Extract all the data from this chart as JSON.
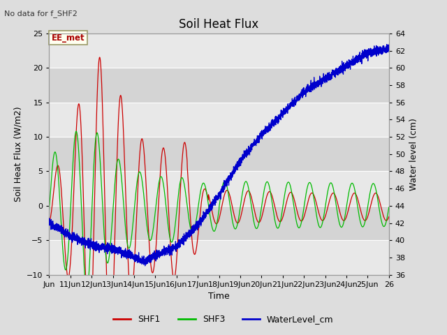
{
  "title": "Soil Heat Flux",
  "subtitle": "No data for f_SHF2",
  "ylabel_left": "Soil Heat Flux (W/m2)",
  "ylabel_right": "Water level (cm)",
  "xlabel": "Time",
  "ylim_left": [
    -10,
    25
  ],
  "ylim_right": [
    36,
    64
  ],
  "x_tick_labels": [
    "Jun",
    "11Jun",
    "12Jun",
    "13Jun",
    "14Jun",
    "15Jun",
    "16Jun",
    "17Jun",
    "18Jun",
    "19Jun",
    "20Jun",
    "21Jun",
    "22Jun",
    "23Jun",
    "24Jun",
    "25Jun",
    "26"
  ],
  "shf1_color": "#cc0000",
  "shf3_color": "#00bb00",
  "water_color": "#0000cc",
  "legend_items": [
    "SHF1",
    "SHF3",
    "WaterLevel_cm"
  ],
  "annotation_text": "EE_met",
  "bg_stripe_light": "#e8e8e8",
  "bg_stripe_dark": "#d8d8d8",
  "title_fontsize": 12,
  "label_fontsize": 9,
  "tick_fontsize": 8
}
